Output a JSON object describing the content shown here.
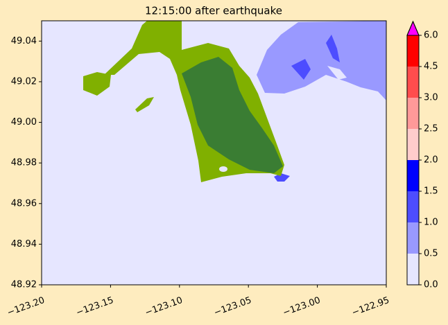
{
  "chart_data": {
    "type": "map",
    "title": "12:15:00 after earthquake",
    "xlim": [
      -123.2,
      -122.95
    ],
    "ylim": [
      48.92,
      49.05
    ],
    "xticks": [
      {
        "value": -123.2,
        "label": "−123.20"
      },
      {
        "value": -123.15,
        "label": "−123.15"
      },
      {
        "value": -123.1,
        "label": "−123.10"
      },
      {
        "value": -123.05,
        "label": "−123.05"
      },
      {
        "value": -123.0,
        "label": "−123.00"
      },
      {
        "value": -122.95,
        "label": "−122.95"
      }
    ],
    "yticks": [
      48.92,
      48.94,
      48.96,
      48.98,
      {
        "value": 49.0,
        "label": "49.00"
      },
      49.02,
      49.04
    ],
    "colorbar": {
      "ticks": [
        {
          "value": 0,
          "label": "0.0"
        },
        0.5,
        {
          "value": 1,
          "label": "1.0"
        },
        1.5,
        {
          "value": 2,
          "label": "2.0"
        },
        2.5,
        {
          "value": 3,
          "label": "3.0"
        },
        4.5,
        {
          "value": 6,
          "label": "6.0"
        }
      ],
      "colors": [
        "#e6e6ff",
        "#9999ff",
        "#4d4dff",
        "#0000ff",
        "#ffcccc",
        "#ff9999",
        "#ff4d4d",
        "#ff0000"
      ],
      "extend_color": "#ff00ff"
    }
  }
}
